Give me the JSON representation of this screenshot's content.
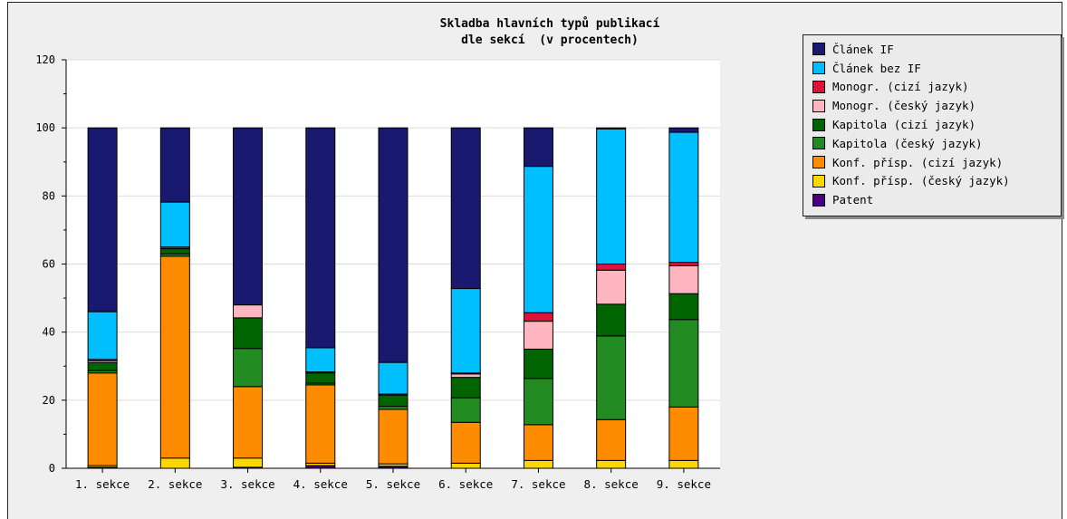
{
  "chart_data": {
    "type": "bar",
    "stacked": true,
    "title": "Skladba hlavních typů publikací",
    "subtitle": "dle sekcí  (v procentech)",
    "ylim": [
      0,
      120
    ],
    "yticks": [
      0,
      20,
      40,
      60,
      80,
      100,
      120
    ],
    "grid": true,
    "legend_position": "top-right",
    "categories": [
      "1. sekce",
      "2. sekce",
      "3. sekce",
      "4. sekce",
      "5. sekce",
      "6. sekce",
      "7. sekce",
      "8. sekce",
      "9. sekce"
    ],
    "series": [
      {
        "name": "Patent",
        "color": "#4b0082",
        "values": [
          0.3,
          0,
          0.3,
          0.8,
          0.6,
          0,
          0,
          0,
          0
        ]
      },
      {
        "name": "Konf. přísp. (český jazyk)",
        "color": "#ffd700",
        "values": [
          0.5,
          3,
          2.7,
          0.7,
          0.7,
          1.5,
          2.3,
          2.3,
          2.3
        ]
      },
      {
        "name": "Konf. přísp. (cizí jazyk)",
        "color": "#ff8c00",
        "values": [
          27.2,
          59.3,
          21,
          23,
          16,
          12,
          10.5,
          12,
          15.7
        ]
      },
      {
        "name": "Kapitola (český jazyk)",
        "color": "#228b22",
        "values": [
          0.7,
          0.7,
          11.2,
          0.5,
          0.9,
          7.2,
          13.6,
          24.6,
          25.7
        ]
      },
      {
        "name": "Kapitola (cizí jazyk)",
        "color": "#006400",
        "values": [
          2.3,
          1.5,
          9,
          3,
          3.3,
          6,
          8.6,
          9.3,
          7.6
        ]
      },
      {
        "name": "Monogr. (český jazyk)",
        "color": "#ffb6c1",
        "values": [
          0.5,
          0,
          3.8,
          0,
          0,
          1,
          8.2,
          10,
          8.2
        ]
      },
      {
        "name": "Monogr. (cizí jazyk)",
        "color": "#dc143c",
        "values": [
          0.5,
          0.5,
          0,
          0.3,
          0.3,
          0.3,
          2.5,
          1.8,
          1
        ]
      },
      {
        "name": "Článek bez IF",
        "color": "#00bfff",
        "values": [
          14,
          13.2,
          0,
          7.1,
          9.3,
          24.8,
          43,
          39.7,
          38.2
        ]
      },
      {
        "name": "Článek IF",
        "color": "#191970",
        "values": [
          54,
          21.8,
          52,
          64.6,
          68.9,
          47.2,
          11.3,
          0.3,
          1.3
        ]
      }
    ]
  },
  "legend": {
    "items": [
      {
        "label": "Článek IF",
        "color": "#191970"
      },
      {
        "label": "Článek bez IF",
        "color": "#00bfff"
      },
      {
        "label": "Monogr. (cizí jazyk)",
        "color": "#dc143c"
      },
      {
        "label": "Monogr. (český jazyk)",
        "color": "#ffb6c1"
      },
      {
        "label": "Kapitola (cizí jazyk)",
        "color": "#006400"
      },
      {
        "label": "Kapitola (český jazyk)",
        "color": "#228b22"
      },
      {
        "label": "Konf. přísp. (cizí jazyk)",
        "color": "#ff8c00"
      },
      {
        "label": "Konf. přísp. (český jazyk)",
        "color": "#ffd700"
      },
      {
        "label": "Patent",
        "color": "#4b0082"
      }
    ]
  }
}
